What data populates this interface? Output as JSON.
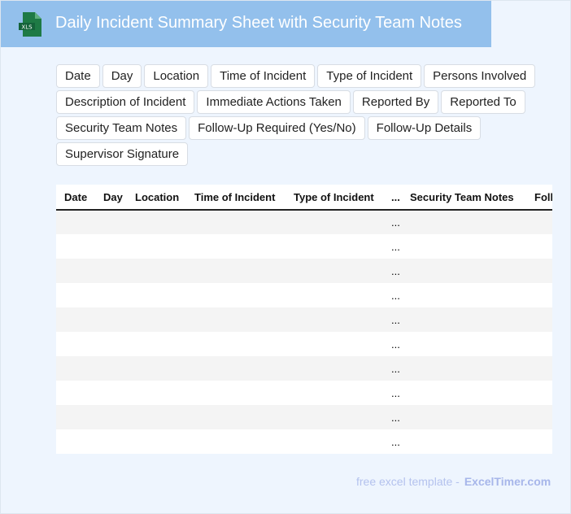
{
  "header": {
    "title": "Daily Incident Summary Sheet with Security Team Notes",
    "icon_label": "XLS",
    "accent": "#93c0ec"
  },
  "fields": [
    "Date",
    "Day",
    "Location",
    "Time of Incident",
    "Type of Incident",
    "Persons Involved",
    "Description of Incident",
    "Immediate Actions Taken",
    "Reported By",
    "Reported To",
    "Security Team Notes",
    "Follow-Up Required (Yes/No)",
    "Follow-Up Details",
    "Supervisor Signature"
  ],
  "table": {
    "columns": [
      "Date",
      "Day",
      "Location",
      "Time of Incident",
      "Type of Incident",
      "...",
      "Security Team Notes",
      "Follow-Up Required (Yes/No)"
    ],
    "ellipsis": "...",
    "row_count": 10
  },
  "footer": {
    "text": "free excel template -",
    "brand": "ExcelTimer.com"
  }
}
